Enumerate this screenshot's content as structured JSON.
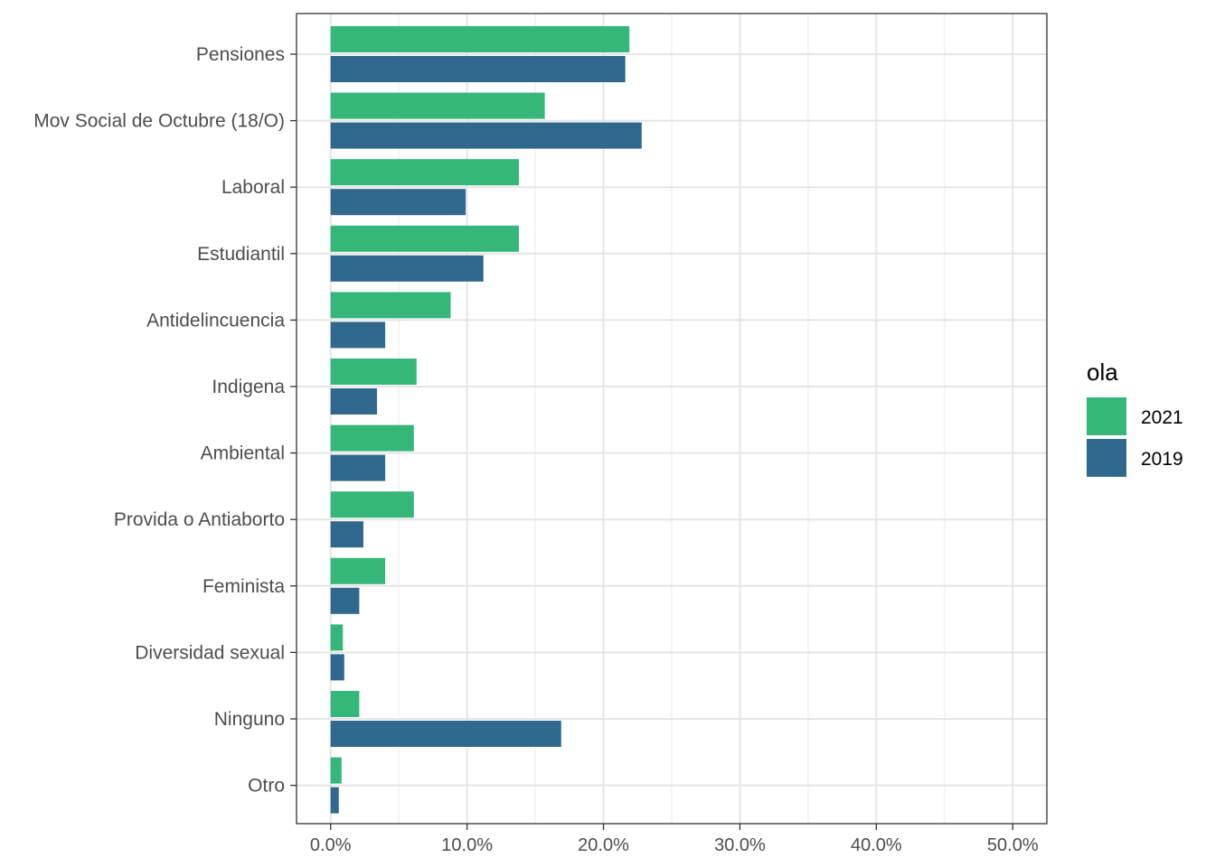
{
  "chart_data": {
    "type": "bar",
    "orientation": "horizontal",
    "categories": [
      "Pensiones",
      "Mov Social de Octubre (18/O)",
      "Laboral",
      "Estudiantil",
      "Antidelincuencia",
      "Indigena",
      "Ambiental",
      "Provida o Antiaborto",
      "Feminista",
      "Diversidad sexual",
      "Ninguno",
      "Otro"
    ],
    "series": [
      {
        "name": "2021",
        "color": "#35b779",
        "values": [
          21.9,
          15.7,
          13.8,
          13.8,
          8.8,
          6.3,
          6.1,
          6.1,
          4.0,
          0.9,
          2.1,
          0.8
        ]
      },
      {
        "name": "2019",
        "color": "#31688e",
        "values": [
          21.6,
          22.8,
          9.9,
          11.2,
          4.0,
          3.4,
          4.0,
          2.4,
          2.1,
          1.0,
          16.9,
          0.6
        ]
      }
    ],
    "xlim": [
      -2.5,
      52.5
    ],
    "x_ticks": [
      0,
      10,
      20,
      30,
      40,
      50
    ],
    "x_tick_labels": [
      "0.0%",
      "10.0%",
      "20.0%",
      "30.0%",
      "40.0%",
      "50.0%"
    ],
    "xlabel": "",
    "ylabel": "",
    "title": "",
    "grid": true,
    "legend": {
      "title": "ola",
      "position": "right",
      "entries": [
        "2021",
        "2019"
      ]
    }
  }
}
